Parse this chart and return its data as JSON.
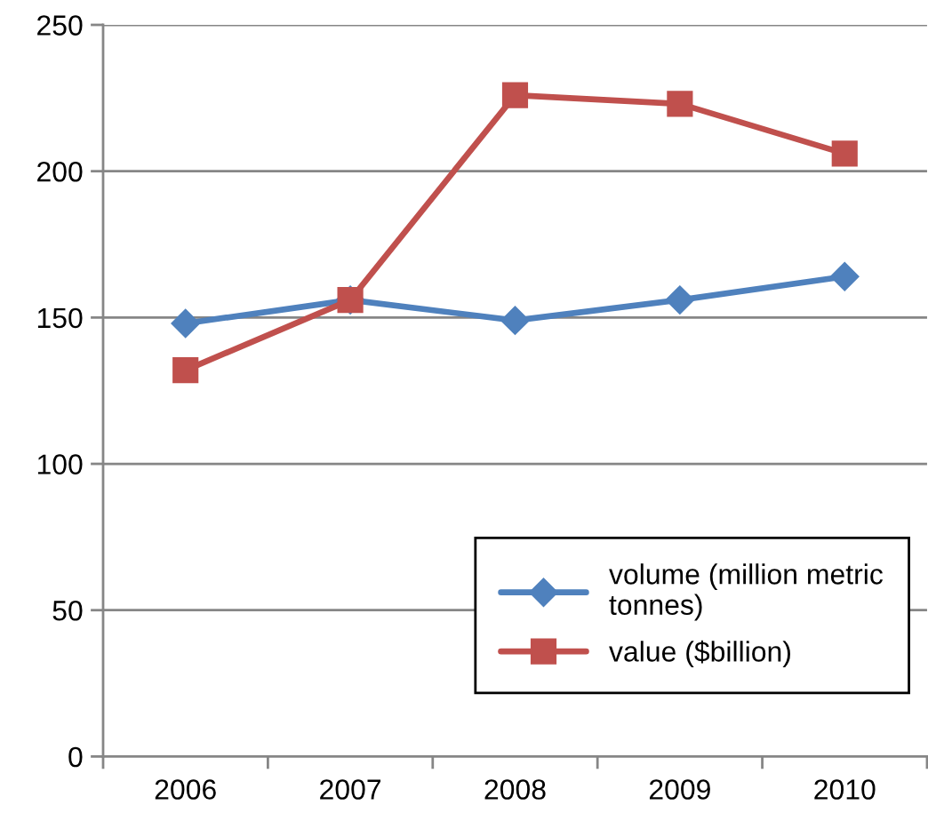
{
  "chart_data": {
    "type": "line",
    "categories": [
      "2006",
      "2007",
      "2008",
      "2009",
      "2010"
    ],
    "series": [
      {
        "name": "volume (million metric tonnes)",
        "color": "#4f81bd",
        "marker": "diamond",
        "values": [
          148,
          156,
          149,
          156,
          164
        ]
      },
      {
        "name": "value ($billion)",
        "color": "#c0504d",
        "marker": "square",
        "values": [
          132,
          156,
          226,
          223,
          206
        ]
      }
    ],
    "ylim": [
      0,
      250
    ],
    "yticks": [
      0,
      50,
      100,
      150,
      200,
      250
    ],
    "grid": "y",
    "legend": "bottom right",
    "line_style": "solid"
  }
}
